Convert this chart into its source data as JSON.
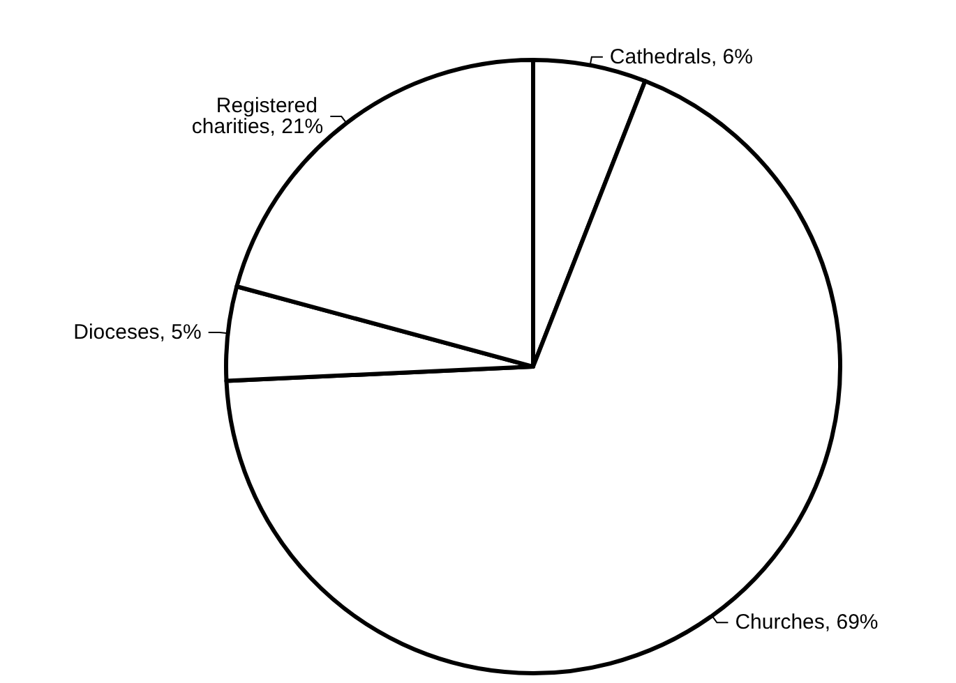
{
  "chart_data": {
    "type": "pie",
    "categories": [
      "Cathedrals",
      "Churches",
      "Dioceses",
      "Registered charities"
    ],
    "values": [
      6,
      69,
      5,
      21
    ],
    "colors": [
      "#ffffff",
      "#ffffff",
      "#ffffff",
      "#ffffff"
    ],
    "value_labels": [
      "6%",
      "69%",
      "5%",
      "21%"
    ],
    "legend": false
  }
}
